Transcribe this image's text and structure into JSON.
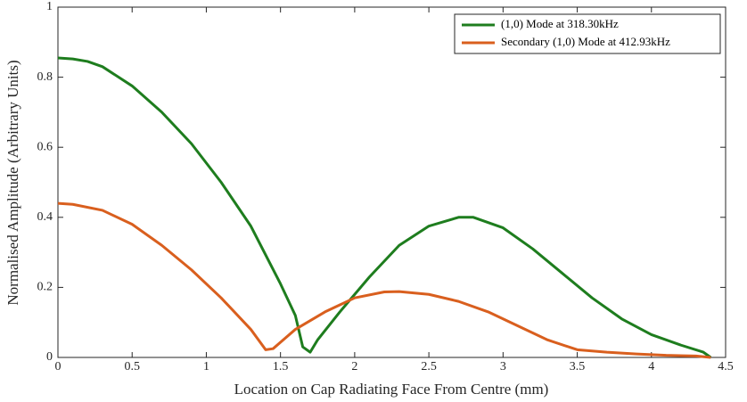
{
  "chart_data": {
    "type": "line",
    "xlabel": "Location on Cap Radiating Face From Centre (mm)",
    "ylabel": "Normalised Amplitude (Arbitrary Units)",
    "xlim": [
      0,
      4.5
    ],
    "xticks": [
      0,
      0.5,
      1,
      1.5,
      2,
      2.5,
      3,
      3.5,
      4,
      4.5
    ],
    "ylim": [
      0,
      1
    ],
    "yticks": [
      0,
      0.2,
      0.4,
      0.6,
      0.8,
      1
    ],
    "legend": "upper right",
    "series": [
      {
        "name": "(1,0) Mode at 318.30kHz",
        "color": "#1e7d1e",
        "x": [
          0,
          0.1,
          0.2,
          0.3,
          0.5,
          0.7,
          0.9,
          1.1,
          1.3,
          1.5,
          1.6,
          1.65,
          1.7,
          1.75,
          1.9,
          2.1,
          2.3,
          2.5,
          2.7,
          2.8,
          3.0,
          3.2,
          3.4,
          3.6,
          3.8,
          4.0,
          4.2,
          4.35,
          4.4
        ],
        "values": [
          0.855,
          0.852,
          0.845,
          0.83,
          0.775,
          0.7,
          0.61,
          0.5,
          0.375,
          0.21,
          0.12,
          0.03,
          0.015,
          0.05,
          0.13,
          0.23,
          0.32,
          0.375,
          0.4,
          0.4,
          0.37,
          0.31,
          0.24,
          0.17,
          0.11,
          0.065,
          0.035,
          0.015,
          0.0
        ]
      },
      {
        "name": "Secondary (1,0) Mode at 412.93kHz",
        "color": "#d95f1e",
        "x": [
          0,
          0.1,
          0.3,
          0.5,
          0.7,
          0.9,
          1.1,
          1.3,
          1.4,
          1.45,
          1.6,
          1.8,
          2.0,
          2.2,
          2.3,
          2.5,
          2.7,
          2.9,
          3.1,
          3.3,
          3.5,
          3.7,
          3.9,
          4.1,
          4.3,
          4.4
        ],
        "values": [
          0.44,
          0.437,
          0.42,
          0.38,
          0.32,
          0.25,
          0.17,
          0.08,
          0.022,
          0.025,
          0.08,
          0.13,
          0.17,
          0.187,
          0.188,
          0.18,
          0.16,
          0.13,
          0.09,
          0.05,
          0.022,
          0.015,
          0.01,
          0.006,
          0.004,
          0.0
        ]
      }
    ]
  }
}
